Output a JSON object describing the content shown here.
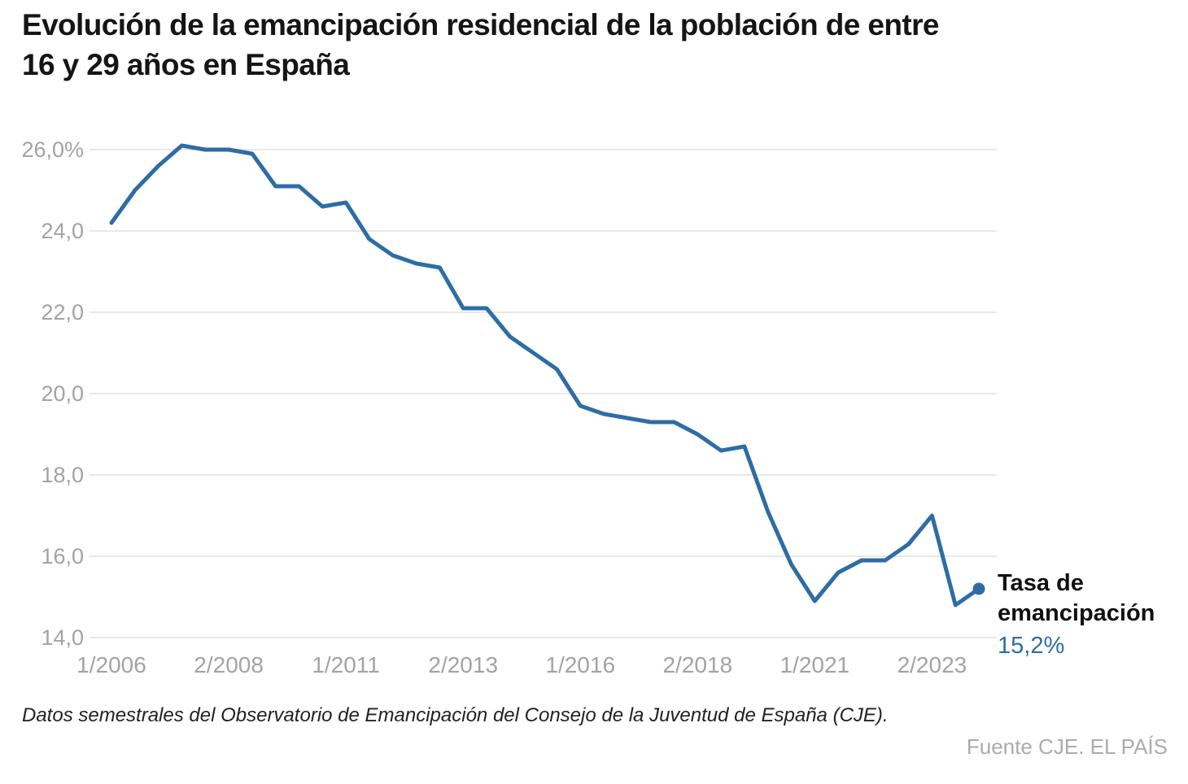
{
  "page": {
    "title_line1": "Evolución de la emancipación residencial de la población de entre",
    "title_line2": "16 y 29 años en España",
    "footnote": "Datos semestrales del Observatorio de Emancipación del Consejo de la Juventud de España (CJE).",
    "source": "Fuente CJE. EL PAÍS"
  },
  "annotation": {
    "label_line1": "Tasa de",
    "label_line2": "emancipación",
    "value": "15,2%"
  },
  "colors": {
    "line": "#2e6da4",
    "grid": "#e8e8e8",
    "axis_text": "#a3a3a3",
    "title_text": "#151515",
    "note_text": "#222222",
    "source_text": "#ababab",
    "background": "#ffffff"
  },
  "chart_data": {
    "type": "line",
    "title": "Evolución de la emancipación residencial de la población de entre 16 y 29 años en España",
    "series_name": "Tasa de emancipación",
    "unit": "%",
    "categories": [
      "1/2006",
      "2/2006",
      "1/2007",
      "2/2007",
      "1/2008",
      "2/2008",
      "1/2009",
      "2/2009",
      "1/2010",
      "2/2010",
      "1/2011",
      "2/2011",
      "1/2012",
      "2/2012",
      "1/2013",
      "2/2013",
      "1/2014",
      "2/2014",
      "1/2015",
      "2/2015",
      "1/2016",
      "2/2016",
      "1/2017",
      "2/2017",
      "1/2018",
      "2/2018",
      "1/2019",
      "2/2019",
      "1/2020",
      "2/2020",
      "1/2021",
      "2/2021",
      "1/2022",
      "2/2022",
      "1/2023",
      "2/2023",
      "1/2024",
      "2/2024"
    ],
    "values": [
      24.2,
      25.0,
      25.6,
      26.1,
      26.0,
      26.0,
      25.9,
      25.1,
      25.1,
      24.6,
      24.7,
      23.8,
      23.4,
      23.2,
      23.1,
      22.1,
      22.1,
      21.4,
      21.0,
      20.6,
      19.7,
      19.5,
      19.4,
      19.3,
      19.3,
      19.0,
      18.6,
      18.7,
      17.1,
      15.8,
      14.9,
      15.6,
      15.9,
      15.9,
      16.3,
      17.0,
      14.8,
      15.2
    ],
    "y_ticks": [
      {
        "value": 26.0,
        "label": "26,0%"
      },
      {
        "value": 24.0,
        "label": "24,0"
      },
      {
        "value": 22.0,
        "label": "22,0"
      },
      {
        "value": 20.0,
        "label": "20,0"
      },
      {
        "value": 18.0,
        "label": "18,0"
      },
      {
        "value": 16.0,
        "label": "16,0"
      },
      {
        "value": 14.0,
        "label": "14,0"
      }
    ],
    "x_ticks": [
      {
        "index": 0,
        "label": "1/2006"
      },
      {
        "index": 5,
        "label": "2/2008"
      },
      {
        "index": 10,
        "label": "1/2011"
      },
      {
        "index": 15,
        "label": "2/2013"
      },
      {
        "index": 20,
        "label": "1/2016"
      },
      {
        "index": 25,
        "label": "2/2018"
      },
      {
        "index": 30,
        "label": "1/2021"
      },
      {
        "index": 35,
        "label": "2/2023"
      }
    ],
    "end_point": {
      "category": "2/2024",
      "value": 15.2,
      "label": "15,2%"
    },
    "ylim": [
      14.0,
      26.0
    ],
    "grid": true,
    "legend_position": "right-of-last-point"
  }
}
